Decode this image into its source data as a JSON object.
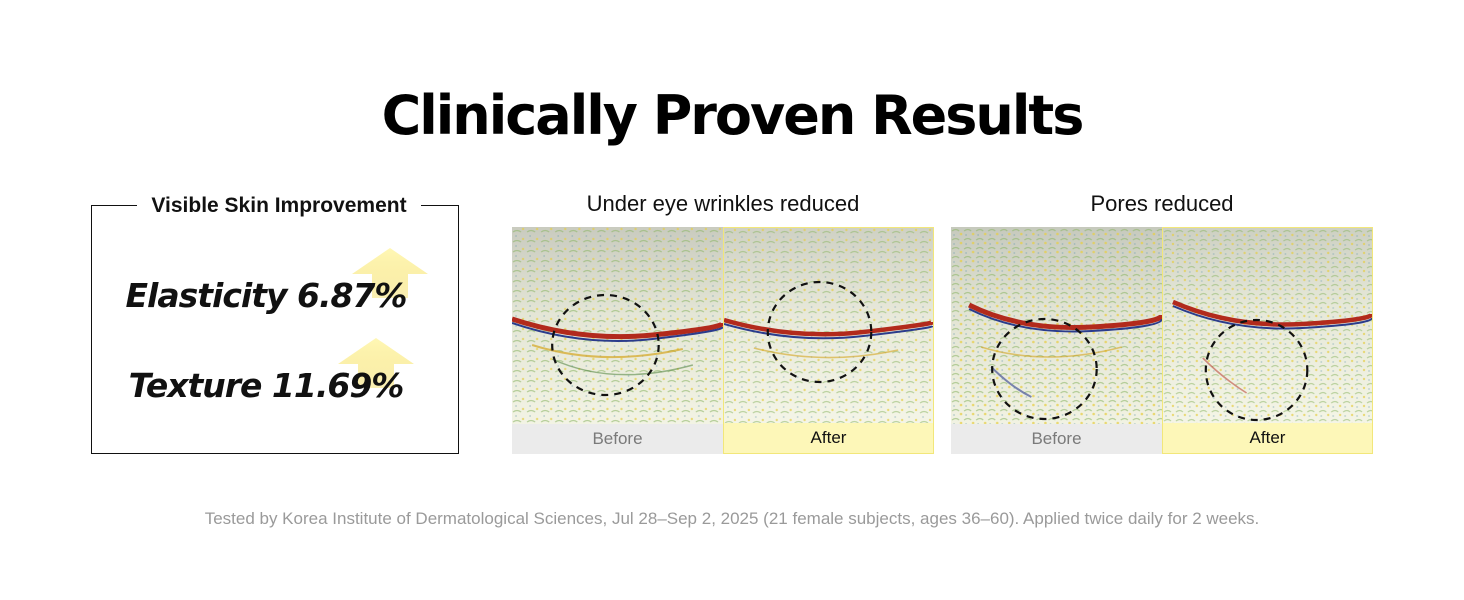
{
  "title": "Clinically Proven Results",
  "stats_box": {
    "heading": "Visible Skin Improvement",
    "items": [
      {
        "label": "Elasticity 6.87%",
        "icon": "up-arrow-icon"
      },
      {
        "label": "Texture 11.69%",
        "icon": "up-arrow-icon"
      }
    ]
  },
  "comparisons": [
    {
      "title": "Under eye wrinkles reduced",
      "before_label": "Before",
      "after_label": "After"
    },
    {
      "title": "Pores reduced",
      "before_label": "Before",
      "after_label": "After"
    }
  ],
  "colors": {
    "before_bg": "#ebebeb",
    "after_bg": "#fdf7b8",
    "arrow": "#f7e36a"
  },
  "footnote": "Tested by Korea Institute of Dermatological Sciences, Jul 28–Sep 2, 2025 (21 female subjects, ages 36–60). Applied twice daily for 2 weeks."
}
